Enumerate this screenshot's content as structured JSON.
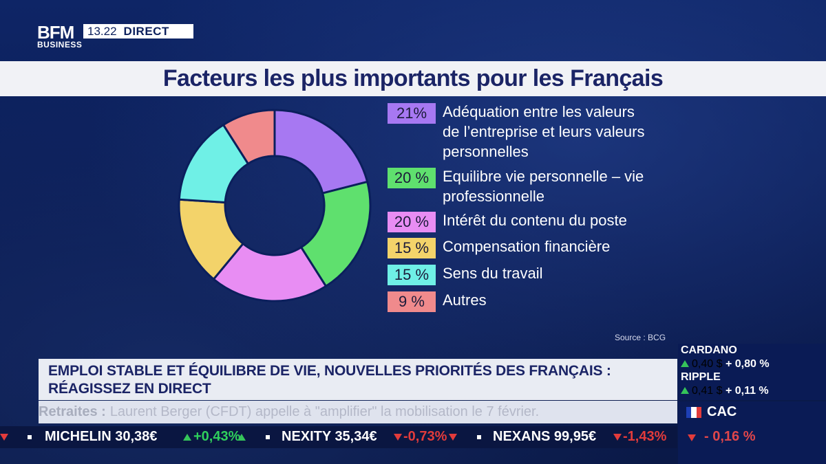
{
  "channel": {
    "logo_main": "BFM",
    "logo_sub": "BUSINESS",
    "time": "13.22",
    "live": "DIRECT"
  },
  "title": "Facteurs les plus importants pour les Français",
  "chart_data": {
    "type": "pie",
    "title": "Facteurs les plus importants pour les Français",
    "slices": [
      {
        "label": "Adéquation entre les valeurs de l'entreprise et leurs valeurs personnelles",
        "label_lines": [
          "Adéquation entre les valeurs",
          "de l’entreprise et leurs valeurs",
          "personnelles"
        ],
        "value": 21,
        "pct_label": "21%",
        "color": "#a778f2"
      },
      {
        "label": "Equilibre vie personnelle – vie professionnelle",
        "label_lines": [
          "Equilibre vie personnelle – vie",
          "professionnelle"
        ],
        "value": 20,
        "pct_label": "20 %",
        "color": "#5fe06e"
      },
      {
        "label": "Intérêt du contenu du poste",
        "label_lines": [
          "Intérêt du contenu du poste"
        ],
        "value": 20,
        "pct_label": "20 %",
        "color": "#e88df3"
      },
      {
        "label": "Compensation financière",
        "label_lines": [
          "Compensation financière"
        ],
        "value": 15,
        "pct_label": "15 %",
        "color": "#f3d36a"
      },
      {
        "label": "Sens du travail",
        "label_lines": [
          "Sens du travail"
        ],
        "value": 15,
        "pct_label": "15 %",
        "color": "#6ff0e6"
      },
      {
        "label": "Autres",
        "label_lines": [
          "Autres"
        ],
        "value": 9,
        "pct_label": "9 %",
        "color": "#f08a8c"
      }
    ],
    "source": "Source : BCG"
  },
  "headline": {
    "line1": "EMPLOI STABLE ET ÉQUILIBRE DE VIE, NOUVELLES PRIORITÉS DES FRANÇAIS :",
    "line2": "RÉAGISSEZ EN DIRECT"
  },
  "newsline": {
    "keyword": "Retraites :",
    "text": "Laurent Berger (CFDT) appelle à \"amplifier\" la mobilisation le 7 février."
  },
  "crypto": [
    {
      "name": "CARDANO",
      "price": "0,40 $",
      "change": "+ 0,80 %"
    },
    {
      "name": "RIPPLE",
      "price": "0,41 $",
      "change": "+ 0,11 %"
    }
  ],
  "index": {
    "name": "CAC",
    "change": "- 0,16 %"
  },
  "ticker": [
    {
      "name": "MICHELIN",
      "price": "30,38€",
      "change": "+0,43%",
      "dir": "up"
    },
    {
      "name": "NEXITY",
      "price": "35,34€",
      "change": "-0,73%",
      "dir": "down"
    },
    {
      "name": "NEXANS",
      "price": "99,95€",
      "change": "-1,43%",
      "dir": "down"
    }
  ],
  "colors": {
    "background": "#0b1f5c",
    "title_text": "#1b2466",
    "up": "#2fd05c",
    "down": "#e23b3b"
  }
}
